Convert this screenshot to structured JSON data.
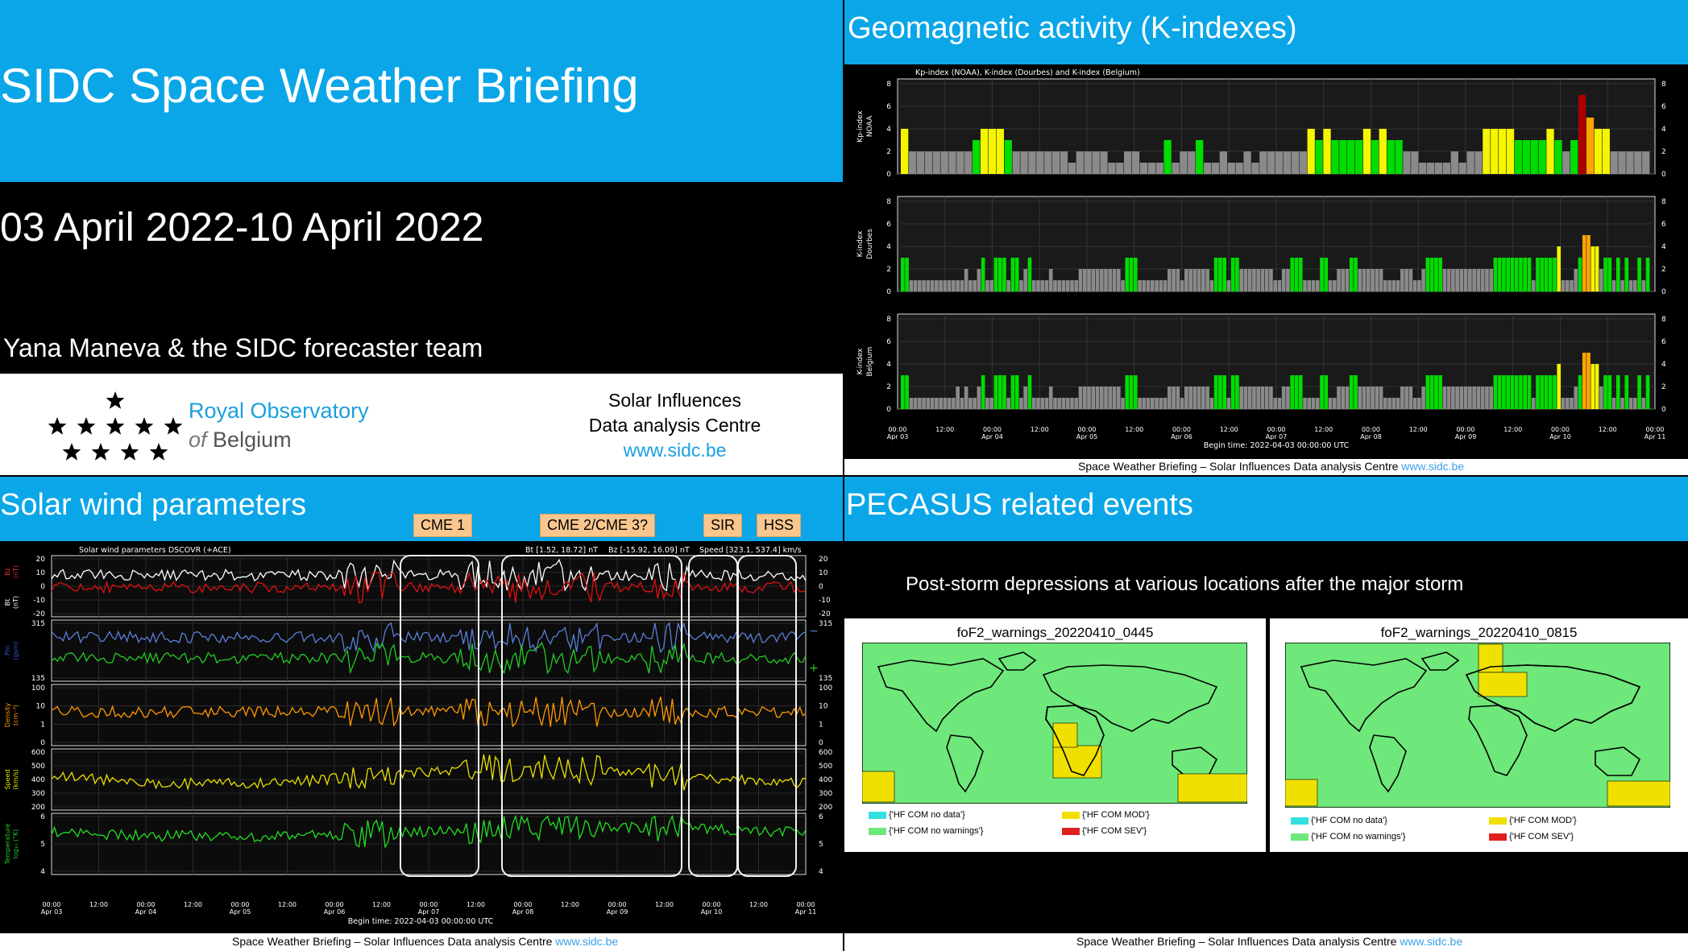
{
  "slide": {
    "title": "SIDC Space Weather Briefing",
    "date_range": "03 April 2022-10 April 2022",
    "authors": "Yana Maneva & the SIDC forecaster team"
  },
  "logo": {
    "line1": "Royal Observatory",
    "line2_of": "of",
    "line2_rest": "Belgium",
    "sidc_line1": "Solar Influences",
    "sidc_line2": "Data analysis Centre",
    "sidc_url": "www.sidc.be"
  },
  "geomag": {
    "heading": "Geomagnetic activity (K-indexes)",
    "plot_title": "Kp-index (NOAA), K-index (Dourbes) and K-index (Belgium)",
    "panels": [
      {
        "ylabel1": "Kp-index",
        "ylabel2": "NOAA"
      },
      {
        "ylabel1": "K-index",
        "ylabel2": "Dourbes"
      },
      {
        "ylabel1": "K-index",
        "ylabel2": "Belgium"
      }
    ],
    "yticks": [
      "0",
      "2",
      "4",
      "6",
      "8"
    ],
    "xticks": [
      {
        "t": "00:00",
        "d": "Apr 03"
      },
      {
        "t": "12:00",
        "d": ""
      },
      {
        "t": "00:00",
        "d": "Apr 04"
      },
      {
        "t": "12:00",
        "d": ""
      },
      {
        "t": "00:00",
        "d": "Apr 05"
      },
      {
        "t": "12:00",
        "d": ""
      },
      {
        "t": "00:00",
        "d": "Apr 06"
      },
      {
        "t": "12:00",
        "d": ""
      },
      {
        "t": "00:00",
        "d": "Apr 07"
      },
      {
        "t": "12:00",
        "d": ""
      },
      {
        "t": "00:00",
        "d": "Apr 08"
      },
      {
        "t": "12:00",
        "d": ""
      },
      {
        "t": "00:00",
        "d": "Apr 09"
      },
      {
        "t": "12:00",
        "d": ""
      },
      {
        "t": "00:00",
        "d": "Apr 10"
      },
      {
        "t": "12:00",
        "d": ""
      },
      {
        "t": "00:00",
        "d": "Apr 11"
      }
    ],
    "begin_time": "Begin time: 2022-04-03 00:00:00 UTC",
    "footer_text": "Space Weather Briefing – Solar Influences Data analysis Centre",
    "footer_link": "www.sidc.be",
    "colors": {
      "quiet": "#8a8a8a",
      "k3": "#00dd00",
      "k4": "#f5f500",
      "k5": "#ffa500",
      "k6": "#ff6600",
      "k7": "#aa0000"
    }
  },
  "chart_data": [
    {
      "type": "bar",
      "title": "Kp-index (NOAA), K-index (Dourbes) and K-index (Belgium)",
      "ylabel": "Kp-index NOAA",
      "ylim": [
        0,
        8
      ],
      "values": [
        4,
        2,
        2,
        2,
        2,
        2,
        2,
        2,
        2,
        3,
        4,
        4,
        4,
        3,
        2,
        2,
        2,
        2,
        2,
        2,
        2,
        1,
        2,
        2,
        2,
        2,
        1,
        1,
        2,
        2,
        1,
        1,
        1,
        3,
        1,
        2,
        2,
        3,
        1,
        1,
        2,
        1,
        1,
        2,
        1,
        2,
        2,
        2,
        2,
        2,
        2,
        4,
        3,
        4,
        3,
        3,
        3,
        3,
        4,
        3,
        4,
        3,
        3,
        2,
        2,
        1,
        1,
        1,
        1,
        2,
        1,
        2,
        2,
        4,
        4,
        4,
        4,
        3,
        3,
        3,
        3,
        4,
        3,
        2,
        3,
        7,
        5,
        4,
        4,
        2,
        2,
        2,
        2,
        2
      ]
    },
    {
      "type": "bar",
      "ylabel": "K-index Dourbes",
      "ylim": [
        0,
        8
      ],
      "values": [
        3,
        3,
        1,
        1,
        1,
        1,
        1,
        1,
        1,
        1,
        1,
        1,
        1,
        1,
        1,
        2,
        1,
        1,
        2,
        3,
        1,
        1,
        3,
        3,
        3,
        1,
        3,
        3,
        1,
        2,
        3,
        1,
        1,
        1,
        1,
        2,
        1,
        1,
        1,
        1,
        1,
        1,
        2,
        2,
        2,
        2,
        2,
        2,
        2,
        2,
        2,
        2,
        1,
        3,
        3,
        3,
        1,
        1,
        1,
        1,
        1,
        1,
        1,
        2,
        2,
        2,
        1,
        2,
        2,
        2,
        2,
        2,
        2,
        1,
        3,
        3,
        3,
        1,
        3,
        3,
        2,
        2,
        2,
        2,
        2,
        2,
        2,
        2,
        1,
        1,
        2,
        2,
        3,
        3,
        3,
        1,
        1,
        1,
        1,
        3,
        3,
        1,
        1,
        2,
        2,
        2,
        3,
        3,
        2,
        2,
        2,
        2,
        2,
        2,
        1,
        1,
        1,
        1,
        2,
        2,
        2,
        1,
        1,
        2,
        3,
        3,
        3,
        3,
        2,
        2,
        2,
        2,
        2,
        2,
        2,
        2,
        2,
        2,
        2,
        2,
        3,
        3,
        3,
        3,
        3,
        3,
        3,
        3,
        3,
        1,
        3,
        3,
        3,
        3,
        3,
        4,
        1,
        1,
        1,
        2,
        3,
        5,
        5,
        4,
        4,
        2,
        3,
        3,
        1,
        3,
        1,
        3,
        1,
        1,
        3,
        1,
        3
      ]
    },
    {
      "type": "bar",
      "ylabel": "K-index Belgium",
      "ylim": [
        0,
        8
      ],
      "values": [
        3,
        3,
        1,
        1,
        1,
        1,
        1,
        1,
        1,
        1,
        1,
        1,
        1,
        2,
        1,
        2,
        1,
        1,
        2,
        3,
        1,
        1,
        3,
        3,
        3,
        1,
        3,
        3,
        1,
        2,
        3,
        1,
        1,
        1,
        1,
        2,
        1,
        1,
        1,
        1,
        1,
        1,
        2,
        2,
        2,
        2,
        2,
        2,
        2,
        2,
        2,
        2,
        1,
        3,
        3,
        3,
        1,
        1,
        1,
        1,
        1,
        1,
        1,
        2,
        2,
        2,
        1,
        2,
        2,
        2,
        2,
        2,
        2,
        1,
        3,
        3,
        3,
        1,
        3,
        3,
        2,
        2,
        2,
        2,
        2,
        2,
        2,
        2,
        1,
        1,
        2,
        2,
        3,
        3,
        3,
        1,
        1,
        1,
        1,
        3,
        3,
        1,
        1,
        2,
        2,
        2,
        3,
        3,
        2,
        2,
        2,
        2,
        2,
        2,
        1,
        1,
        1,
        1,
        2,
        2,
        2,
        1,
        1,
        2,
        3,
        3,
        3,
        3,
        2,
        2,
        2,
        2,
        2,
        2,
        2,
        2,
        2,
        2,
        2,
        2,
        3,
        3,
        3,
        3,
        3,
        3,
        3,
        3,
        3,
        1,
        3,
        3,
        3,
        3,
        3,
        4,
        1,
        1,
        1,
        2,
        3,
        5,
        5,
        4,
        4,
        2,
        3,
        3,
        1,
        3,
        1,
        3,
        1,
        1,
        3,
        1,
        3
      ]
    }
  ],
  "solarwind": {
    "heading": "Solar wind parameters",
    "tags": [
      "CME 1",
      "CME 2/CME 3?",
      "SIR",
      "HSS"
    ],
    "plot_title": "Solar wind parameters DSCOVR (+ACE)",
    "legend_bt": "Bt [1.52, 18.72] nT",
    "legend_bz": "Bz [-15.92, 16.09] nT",
    "legend_speed": "Speed [323.1, 537.4] km/s",
    "panels": [
      {
        "l1": "Bz",
        "l2": "(nT)",
        "l3": "Bt",
        "l4": "(nT)",
        "ticks": [
          "20",
          "10",
          "0",
          "-10",
          "-20"
        ]
      },
      {
        "l1": "Phi",
        "l2": "(gsm)",
        "ticks": [
          "315",
          "135"
        ]
      },
      {
        "l1": "Density",
        "l2": "(cm⁻³)",
        "ticks": [
          "100",
          "10",
          "1",
          "0"
        ]
      },
      {
        "l1": "Speed",
        "l2": "(km/s)",
        "ticks": [
          "600",
          "500",
          "400",
          "300",
          "200"
        ]
      },
      {
        "l1": "Temperature",
        "l2": "log₁₀ (°K)",
        "ticks": [
          "6",
          "5",
          "4"
        ]
      }
    ],
    "right_phi": [
      "−",
      "+"
    ],
    "xticks": [
      {
        "t": "00:00",
        "d": "Apr 03"
      },
      {
        "t": "12:00",
        "d": ""
      },
      {
        "t": "00:00",
        "d": "Apr 04"
      },
      {
        "t": "12:00",
        "d": ""
      },
      {
        "t": "00:00",
        "d": "Apr 05"
      },
      {
        "t": "12:00",
        "d": ""
      },
      {
        "t": "00:00",
        "d": "Apr 06"
      },
      {
        "t": "12:00",
        "d": ""
      },
      {
        "t": "00:00",
        "d": "Apr 07"
      },
      {
        "t": "12:00",
        "d": ""
      },
      {
        "t": "00:00",
        "d": "Apr 08"
      },
      {
        "t": "12:00",
        "d": ""
      },
      {
        "t": "00:00",
        "d": "Apr 09"
      },
      {
        "t": "12:00",
        "d": ""
      },
      {
        "t": "00:00",
        "d": "Apr 10"
      },
      {
        "t": "12:00",
        "d": ""
      },
      {
        "t": "00:00",
        "d": "Apr 11"
      }
    ],
    "begin_time": "Begin time: 2022-04-03 00:00:00 UTC",
    "footer_text": "Space Weather Briefing – Solar Influences Data analysis Centre",
    "footer_link": "www.sidc.be"
  },
  "pecasus": {
    "heading": "PECASUS related events",
    "subtitle": "Post-storm depressions at various locations after the major storm",
    "maps": [
      {
        "title": "foF2_warnings_20220410_0445"
      },
      {
        "title": "foF2_warnings_20220410_0815"
      }
    ],
    "legend": {
      "nodata": "{'HF COM no data'}",
      "nowarn": "{'HF COM no warnings'}",
      "mod": "{'HF COM MOD'}",
      "sev": "{'HF COM SEV'}"
    },
    "footer_text": "Space Weather Briefing – Solar Influences Data analysis Centre",
    "footer_link": "www.sidc.be",
    "colors": {
      "nodata": "#33e0e0",
      "nowarn": "#6ee87a",
      "mod": "#f0e000",
      "sev": "#e02020",
      "land_bg": "#6ee87a"
    }
  }
}
